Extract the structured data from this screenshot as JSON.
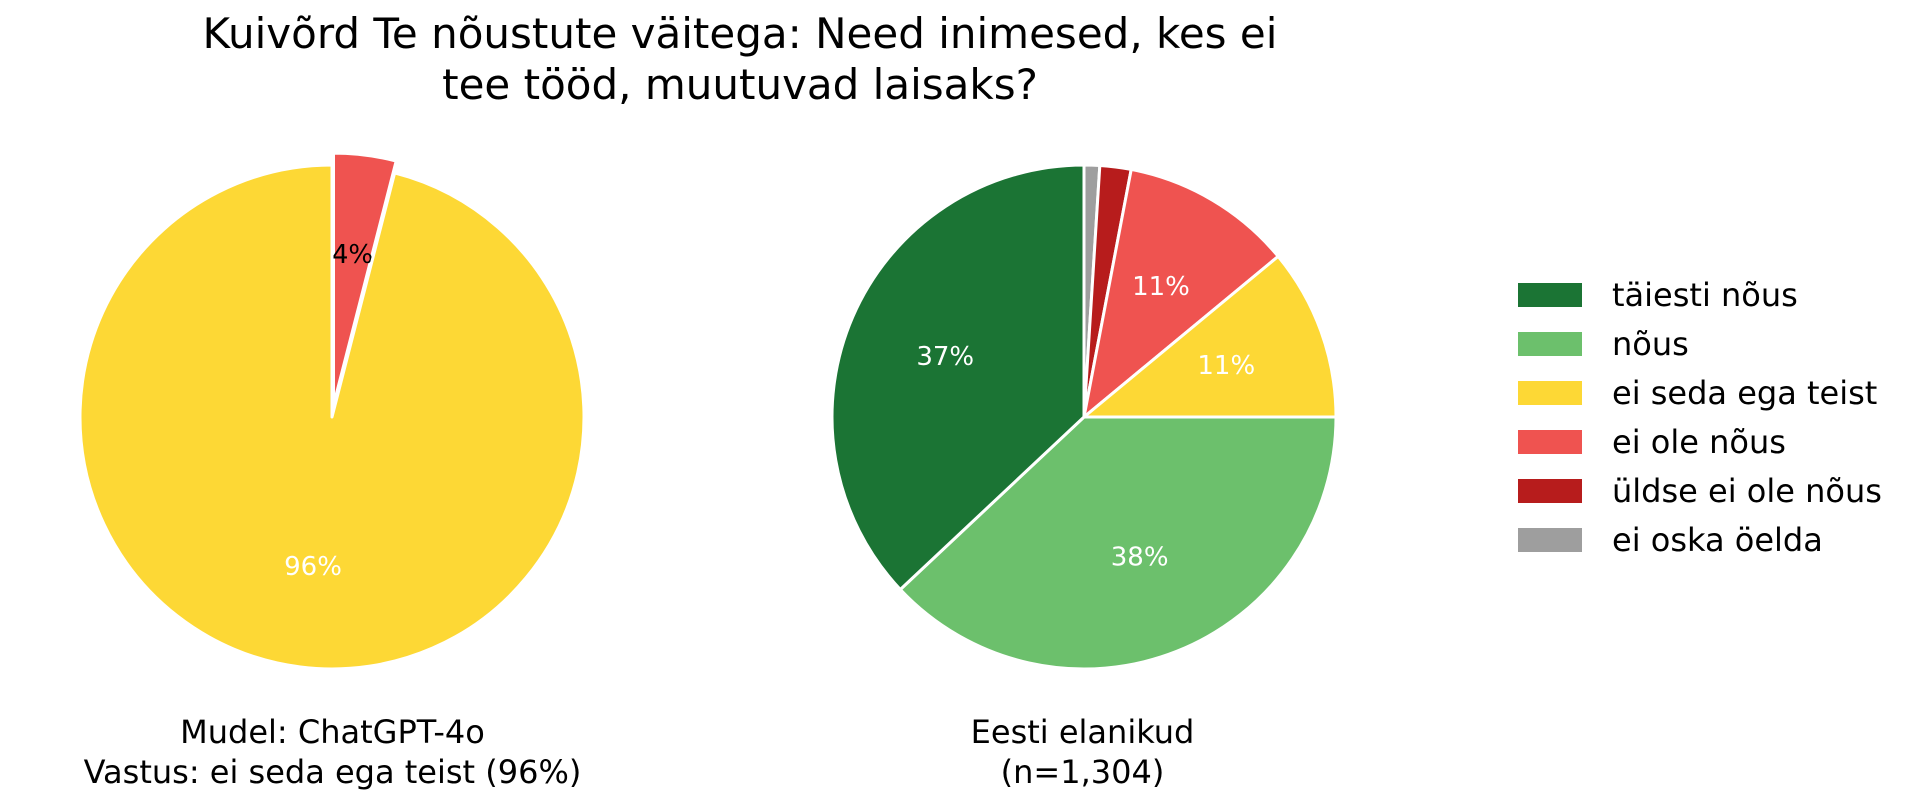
{
  "title_line1": "Kuivõrd Te nõustute väitega: Need inimesed, kes ei",
  "title_line2": "tee tööd, muutuvad laisaks?",
  "left_caption": {
    "line1": "Mudel: ChatGPT-4o",
    "line2": "Vastus: ei seda ega teist (96%)"
  },
  "right_caption": {
    "line1": "Eesti elanikud",
    "line2": "(n=1,304)"
  },
  "legend": [
    {
      "label": "täiesti nõus",
      "color": "#1b7434"
    },
    {
      "label": "nõus",
      "color": "#6cc06c"
    },
    {
      "label": "ei seda ega teist",
      "color": "#fdd835"
    },
    {
      "label": "ei ole nõus",
      "color": "#ef5350"
    },
    {
      "label": "üldse ei ole nõus",
      "color": "#b71c1c"
    },
    {
      "label": "ei oska öelda",
      "color": "#9e9e9e"
    }
  ],
  "chart_data": [
    {
      "type": "pie",
      "title": "",
      "slices": [
        {
          "label": "ei ole nõus",
          "value": 4,
          "color": "#ef5350",
          "data_label": "4%",
          "exploded": true
        },
        {
          "label": "ei seda ega teist",
          "value": 96,
          "color": "#fdd835",
          "data_label": "96%",
          "exploded": false
        }
      ]
    },
    {
      "type": "pie",
      "title": "",
      "slices": [
        {
          "label": "ei oska öelda",
          "value": 1,
          "color": "#9e9e9e",
          "data_label": ""
        },
        {
          "label": "üldse ei ole nõus",
          "value": 2,
          "color": "#b71c1c",
          "data_label": ""
        },
        {
          "label": "ei ole nõus",
          "value": 11,
          "color": "#ef5350",
          "data_label": "11%"
        },
        {
          "label": "ei seda ega teist",
          "value": 11,
          "color": "#fdd835",
          "data_label": "11%"
        },
        {
          "label": "nõus",
          "value": 38,
          "color": "#6cc06c",
          "data_label": "38%"
        },
        {
          "label": "täiesti nõus",
          "value": 37,
          "color": "#1b7434",
          "data_label": "37%"
        }
      ]
    }
  ]
}
